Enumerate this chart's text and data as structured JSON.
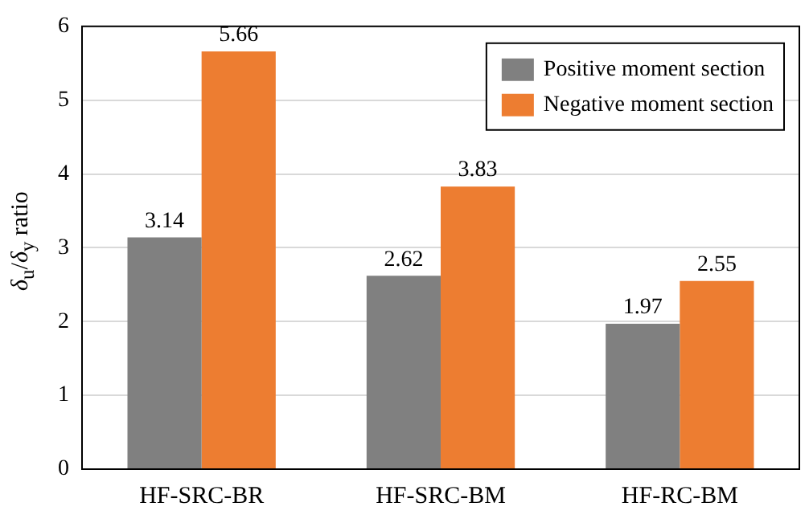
{
  "chart_data": {
    "type": "bar",
    "ylabel": "δ$_{u}$/δ$_{y}$ ratio",
    "categories": [
      "HF-SRC-BR",
      "HF-SRC-BM",
      "HF-RC-BM"
    ],
    "series": [
      {
        "name": "Positive moment section",
        "color": "#808080",
        "values": [
          3.14,
          2.62,
          1.97
        ]
      },
      {
        "name": "Negative moment section",
        "color": "#ed7d31",
        "values": [
          5.66,
          3.83,
          2.55
        ]
      }
    ],
    "ylim": [
      0,
      6
    ],
    "yticks": [
      0,
      1,
      2,
      3,
      4,
      5,
      6
    ],
    "grid": "y",
    "legend": "top right",
    "data_labels": true
  }
}
